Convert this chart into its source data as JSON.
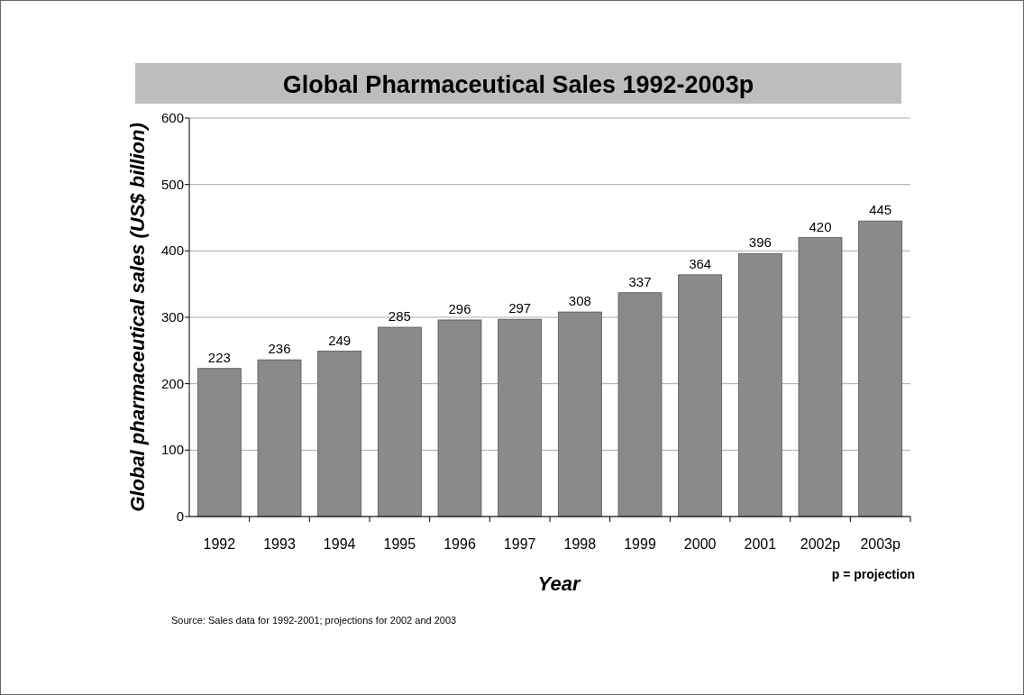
{
  "chart_data": {
    "type": "bar",
    "title": "Global Pharmaceutical Sales 1992-2003p",
    "xlabel": "Year",
    "ylabel": "Global pharmaceutical sales (US$ billion)",
    "categories": [
      "1992",
      "1993",
      "1994",
      "1995",
      "1996",
      "1997",
      "1998",
      "1999",
      "2000",
      "2001",
      "2002p",
      "2003p"
    ],
    "values": [
      223,
      236,
      249,
      285,
      296,
      297,
      308,
      337,
      364,
      396,
      420,
      445
    ],
    "color": "#8a8a8a",
    "ylim": [
      0,
      600
    ],
    "yticks": [
      0,
      100,
      200,
      300,
      400,
      500,
      600
    ],
    "grid": "y",
    "data_labels": true,
    "annotations": [
      "p = projection",
      "Source: Sales data for 1992-2001; projections for 2002 and 2003"
    ]
  }
}
